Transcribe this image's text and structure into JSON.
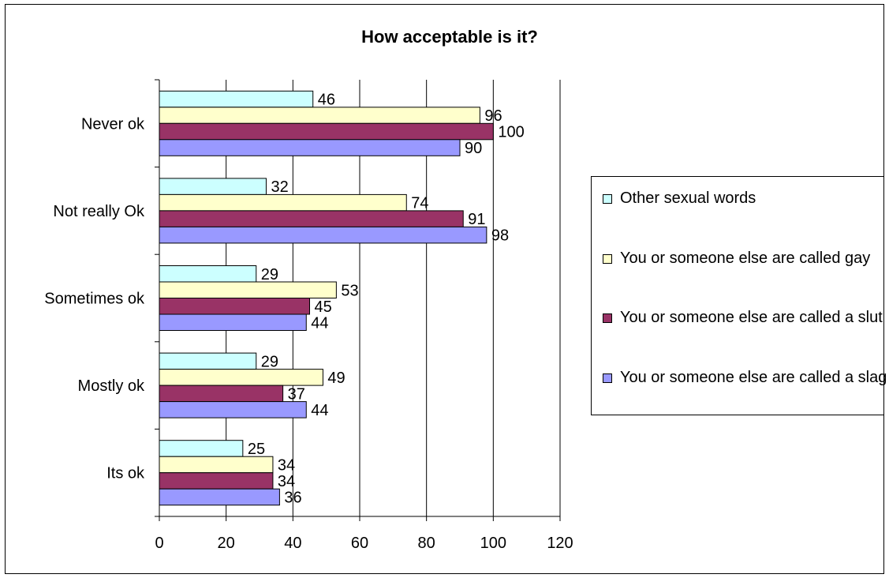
{
  "chart_data": {
    "type": "bar",
    "orientation": "horizontal",
    "title": "How acceptable is it?",
    "categories": [
      "Never ok",
      "Not really Ok",
      "Sometimes ok",
      "Mostly ok",
      "Its ok"
    ],
    "series": [
      {
        "name": "Other sexual words",
        "values": [
          46,
          32,
          29,
          29,
          25
        ],
        "color": "#CCFFFF"
      },
      {
        "name": "You or someone else are called gay",
        "values": [
          96,
          74,
          53,
          49,
          34
        ],
        "color": "#FFFFCC"
      },
      {
        "name": "You or someone else are called a slut",
        "values": [
          100,
          91,
          45,
          37,
          34
        ],
        "color": "#993366"
      },
      {
        "name": "You or someone else are called a slag",
        "values": [
          90,
          98,
          44,
          44,
          36
        ],
        "color": "#9999FF"
      }
    ],
    "xlim": [
      0,
      120
    ],
    "x_ticks": [
      0,
      20,
      40,
      60,
      80,
      100,
      120
    ],
    "grid": "vertical",
    "legend_position": "right",
    "data_labels": true
  }
}
